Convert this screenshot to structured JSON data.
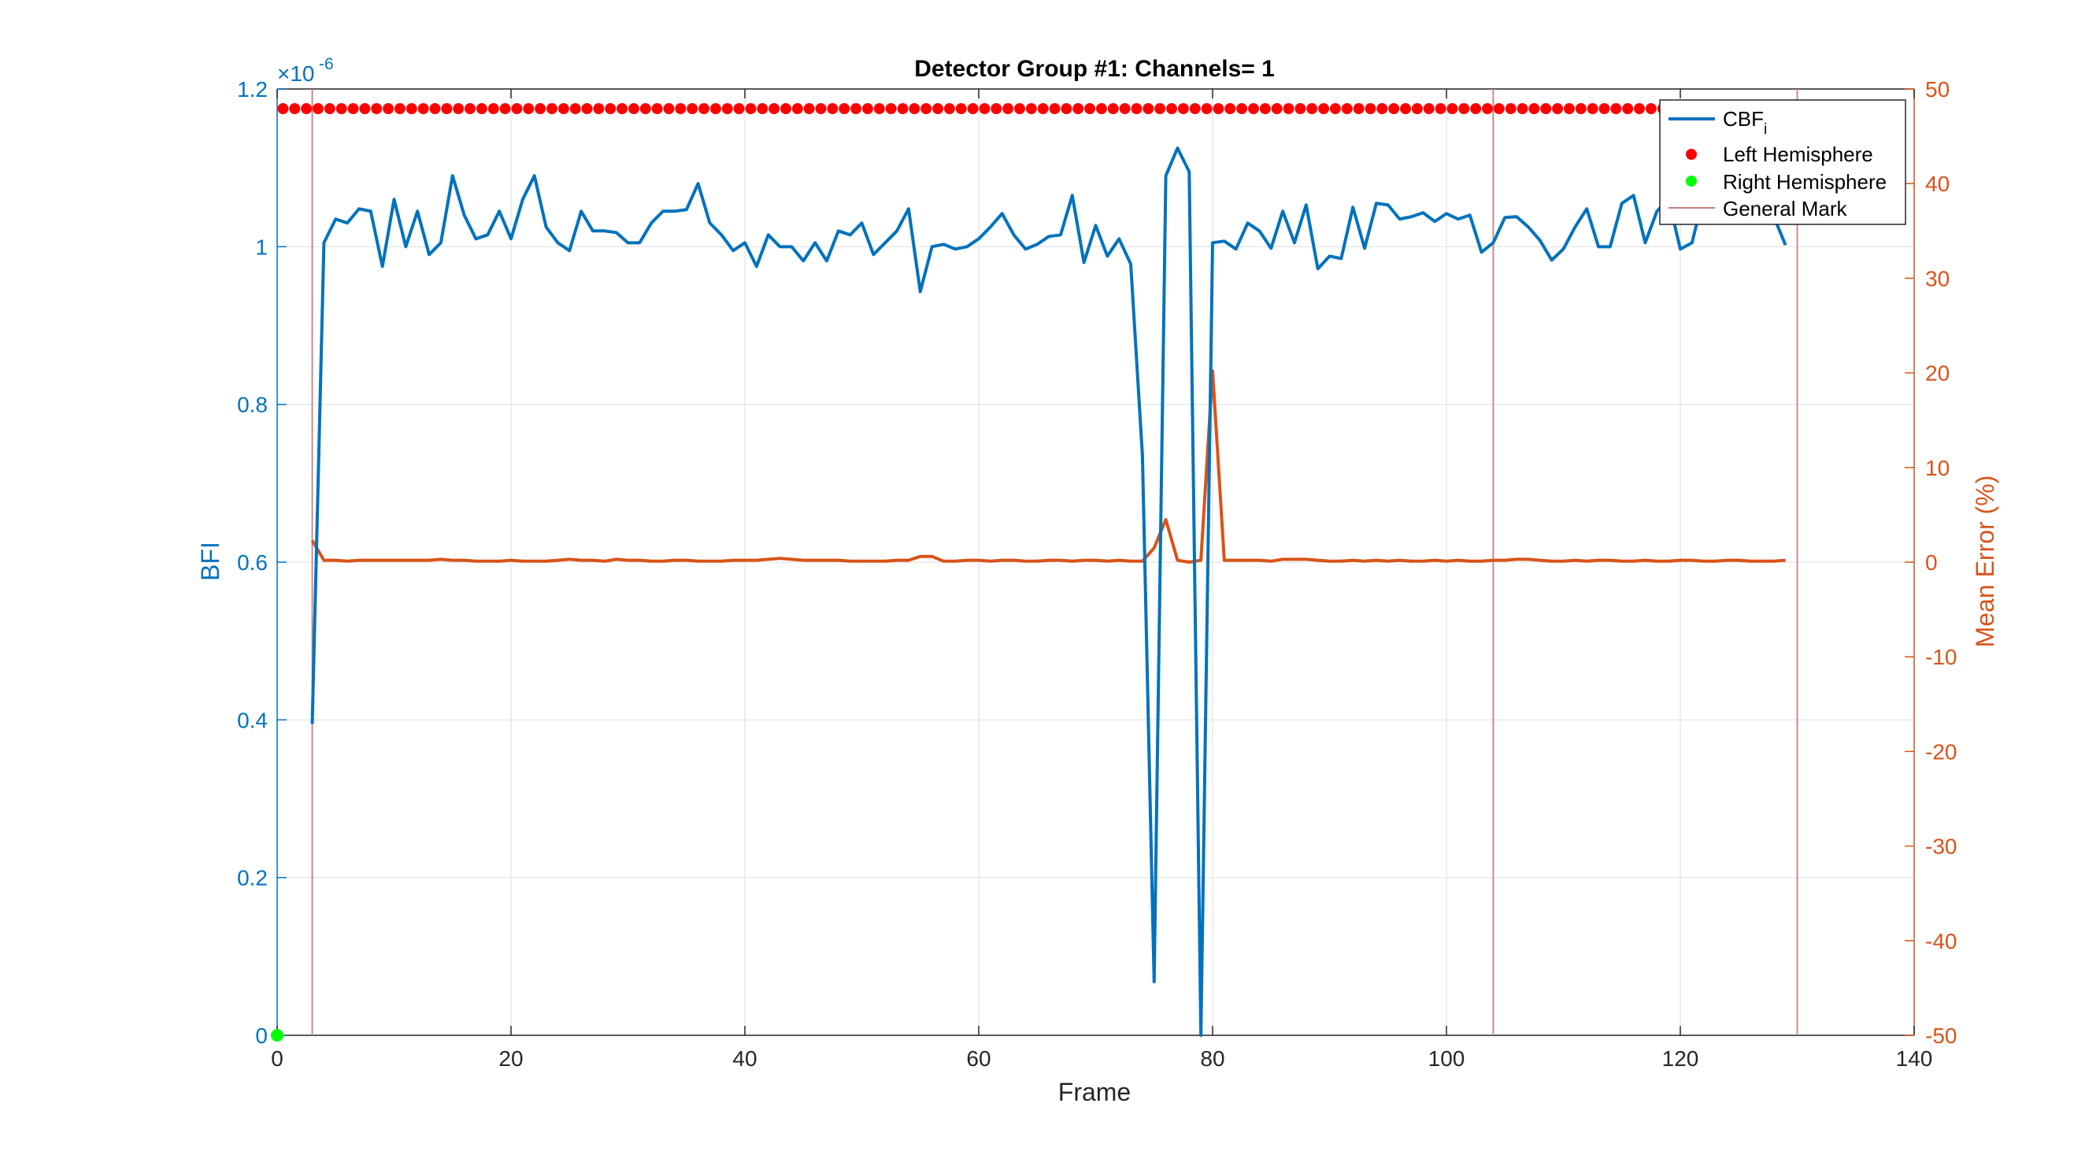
{
  "chart_data": {
    "type": "line",
    "title": "Detector Group #1: Channels= 1",
    "xlabel": "Frame",
    "ylabel_left": "BFI",
    "ylabel_right": "Mean Error (%)",
    "left_exponent_label": "×10",
    "left_exponent_power": "-6",
    "xlim": [
      0,
      140
    ],
    "ylim_left": [
      0,
      1.2
    ],
    "ylim_right": [
      -50,
      50
    ],
    "x_ticks": [
      "0",
      "20",
      "40",
      "60",
      "80",
      "100",
      "120",
      "140"
    ],
    "y_ticks_left": [
      "0",
      "0.2",
      "0.4",
      "0.6",
      "0.8",
      "1",
      "1.2"
    ],
    "y_ticks_right": [
      "-50",
      "-40",
      "-30",
      "-20",
      "-10",
      "0",
      "10",
      "20",
      "30",
      "40",
      "50"
    ],
    "grid": true,
    "legend_position": "top-right",
    "colors": {
      "cbf": "#0072BD",
      "error": "#D95319",
      "left_hemisphere": "#FF0000",
      "right_hemisphere": "#00FF00",
      "general_mark": "#C98080",
      "grid": "#E3E3E3",
      "axis": "#262626"
    },
    "legend": {
      "cbf_base": "CBF",
      "cbf_sub": "i",
      "left_hemisphere": "Left Hemisphere",
      "right_hemisphere": "Right Hemisphere",
      "general_mark": "General Mark"
    },
    "general_marks": [
      3,
      104,
      130
    ],
    "left_hemisphere_markers": {
      "x_start": 0.5,
      "x_end": 129.5,
      "step": 1,
      "y": 1.175
    },
    "right_hemisphere_markers": [
      {
        "x": 0,
        "y": 0
      }
    ],
    "series_cbf": {
      "axis": "left",
      "x_start": 3,
      "values": [
        0.395,
        1.005,
        1.035,
        1.03,
        1.048,
        1.045,
        0.975,
        1.06,
        1.0,
        1.045,
        0.99,
        1.005,
        1.09,
        1.04,
        1.01,
        1.015,
        1.045,
        1.01,
        1.06,
        1.09,
        1.025,
        1.005,
        0.995,
        1.045,
        1.02,
        1.02,
        1.018,
        1.005,
        1.005,
        1.03,
        1.045,
        1.045,
        1.047,
        1.08,
        1.03,
        1.015,
        0.995,
        1.005,
        0.975,
        1.015,
        1.0,
        1.0,
        0.982,
        1.005,
        0.982,
        1.02,
        1.015,
        1.03,
        0.99,
        1.005,
        1.02,
        1.048,
        0.943,
        1.0,
        1.003,
        0.997,
        1.0,
        1.01,
        1.025,
        1.042,
        1.015,
        0.997,
        1.003,
        1.013,
        1.015,
        1.065,
        0.98,
        1.027,
        0.988,
        1.01,
        0.978,
        0.735,
        0.068,
        1.09,
        1.125,
        1.095,
        0.0,
        1.005,
        1.007,
        0.997,
        1.03,
        1.02,
        0.998,
        1.045,
        1.005,
        1.053,
        0.972,
        0.988,
        0.985,
        1.05,
        0.998,
        1.055,
        1.053,
        1.035,
        1.038,
        1.043,
        1.032,
        1.042,
        1.035,
        1.04,
        0.993,
        1.005,
        1.037,
        1.038,
        1.025,
        1.008,
        0.983,
        0.997,
        1.025,
        1.048,
        1.0,
        1.0,
        1.055,
        1.065,
        1.005,
        1.045,
        1.06,
        0.997,
        1.005,
        1.065,
        1.06,
        1.055,
        1.052,
        1.042,
        1.048,
        1.038,
        1.002
      ]
    },
    "series_error": {
      "axis": "right",
      "x_start": 3,
      "values": [
        2.3,
        0.2,
        0.2,
        0.1,
        0.2,
        0.2,
        0.2,
        0.2,
        0.2,
        0.2,
        0.2,
        0.3,
        0.2,
        0.2,
        0.1,
        0.1,
        0.1,
        0.2,
        0.1,
        0.1,
        0.1,
        0.2,
        0.3,
        0.2,
        0.2,
        0.1,
        0.3,
        0.2,
        0.2,
        0.1,
        0.1,
        0.2,
        0.2,
        0.1,
        0.1,
        0.1,
        0.2,
        0.2,
        0.2,
        0.3,
        0.4,
        0.3,
        0.2,
        0.2,
        0.2,
        0.2,
        0.1,
        0.1,
        0.1,
        0.1,
        0.2,
        0.2,
        0.6,
        0.6,
        0.1,
        0.1,
        0.2,
        0.2,
        0.1,
        0.2,
        0.2,
        0.1,
        0.1,
        0.2,
        0.2,
        0.1,
        0.2,
        0.2,
        0.1,
        0.2,
        0.1,
        0.1,
        1.5,
        4.5,
        0.2,
        0.0,
        0.2,
        20.2,
        0.2,
        0.2,
        0.2,
        0.2,
        0.1,
        0.3,
        0.3,
        0.3,
        0.2,
        0.1,
        0.1,
        0.2,
        0.1,
        0.2,
        0.1,
        0.2,
        0.1,
        0.1,
        0.2,
        0.1,
        0.2,
        0.1,
        0.1,
        0.2,
        0.2,
        0.3,
        0.3,
        0.2,
        0.1,
        0.1,
        0.2,
        0.1,
        0.2,
        0.2,
        0.1,
        0.1,
        0.2,
        0.1,
        0.1,
        0.2,
        0.2,
        0.1,
        0.1,
        0.2,
        0.2,
        0.1,
        0.1,
        0.1,
        0.2
      ]
    }
  }
}
